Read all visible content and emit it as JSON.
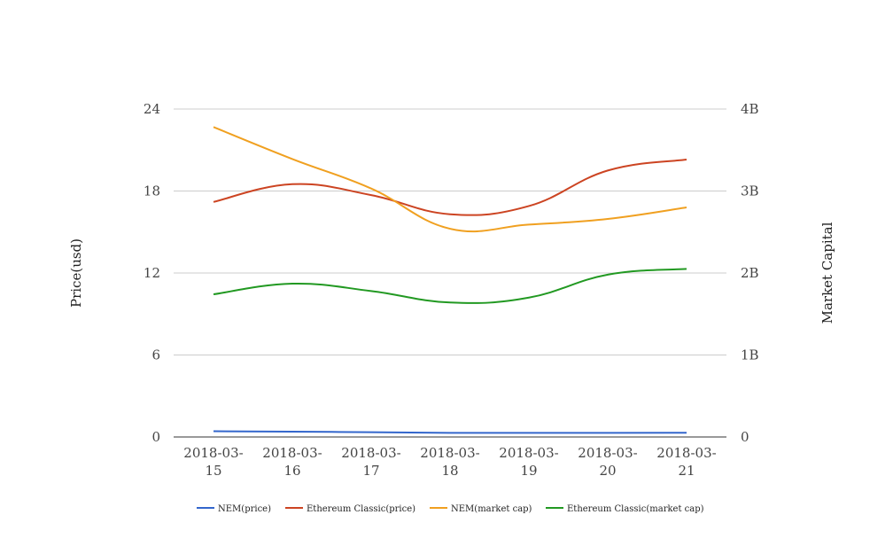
{
  "chart_data": {
    "type": "line",
    "title": "",
    "categories": [
      [
        "2018-03-",
        "15"
      ],
      [
        "2018-03-",
        "16"
      ],
      [
        "2018-03-",
        "17"
      ],
      [
        "2018-03-",
        "18"
      ],
      [
        "2018-03-",
        "19"
      ],
      [
        "2018-03-",
        "20"
      ],
      [
        "2018-03-",
        "21"
      ]
    ],
    "y_left": {
      "label": "Price(usd)",
      "ticks": [
        "0",
        "6",
        "12",
        "18",
        "24"
      ],
      "ylim": [
        0,
        24
      ]
    },
    "y_right": {
      "label": "Market Capital",
      "ticks": [
        "0",
        "1B",
        "2B",
        "3B",
        "4B"
      ],
      "ylim": [
        0,
        4000000000
      ]
    },
    "grid": true,
    "legend_position": "bottom",
    "series": [
      {
        "name": "NEM(price)",
        "axis": "left",
        "color": "#3366cc",
        "values": [
          0.42,
          0.39,
          0.35,
          0.3,
          0.3,
          0.3,
          0.31
        ]
      },
      {
        "name": "Ethereum Classic(price)",
        "axis": "left",
        "color": "#cc4422",
        "values": [
          17.2,
          18.5,
          17.7,
          16.3,
          16.9,
          19.5,
          20.3
        ]
      },
      {
        "name": "NEM(market cap)",
        "axis": "right",
        "color": "#f0a020",
        "values": [
          3780000000,
          3390000000,
          3030000000,
          2540000000,
          2590000000,
          2660000000,
          2800000000
        ]
      },
      {
        "name": "Ethereum Classic(market cap)",
        "axis": "right",
        "color": "#229922",
        "values": [
          1740000000,
          1870000000,
          1780000000,
          1640000000,
          1700000000,
          1980000000,
          2050000000
        ]
      }
    ]
  }
}
